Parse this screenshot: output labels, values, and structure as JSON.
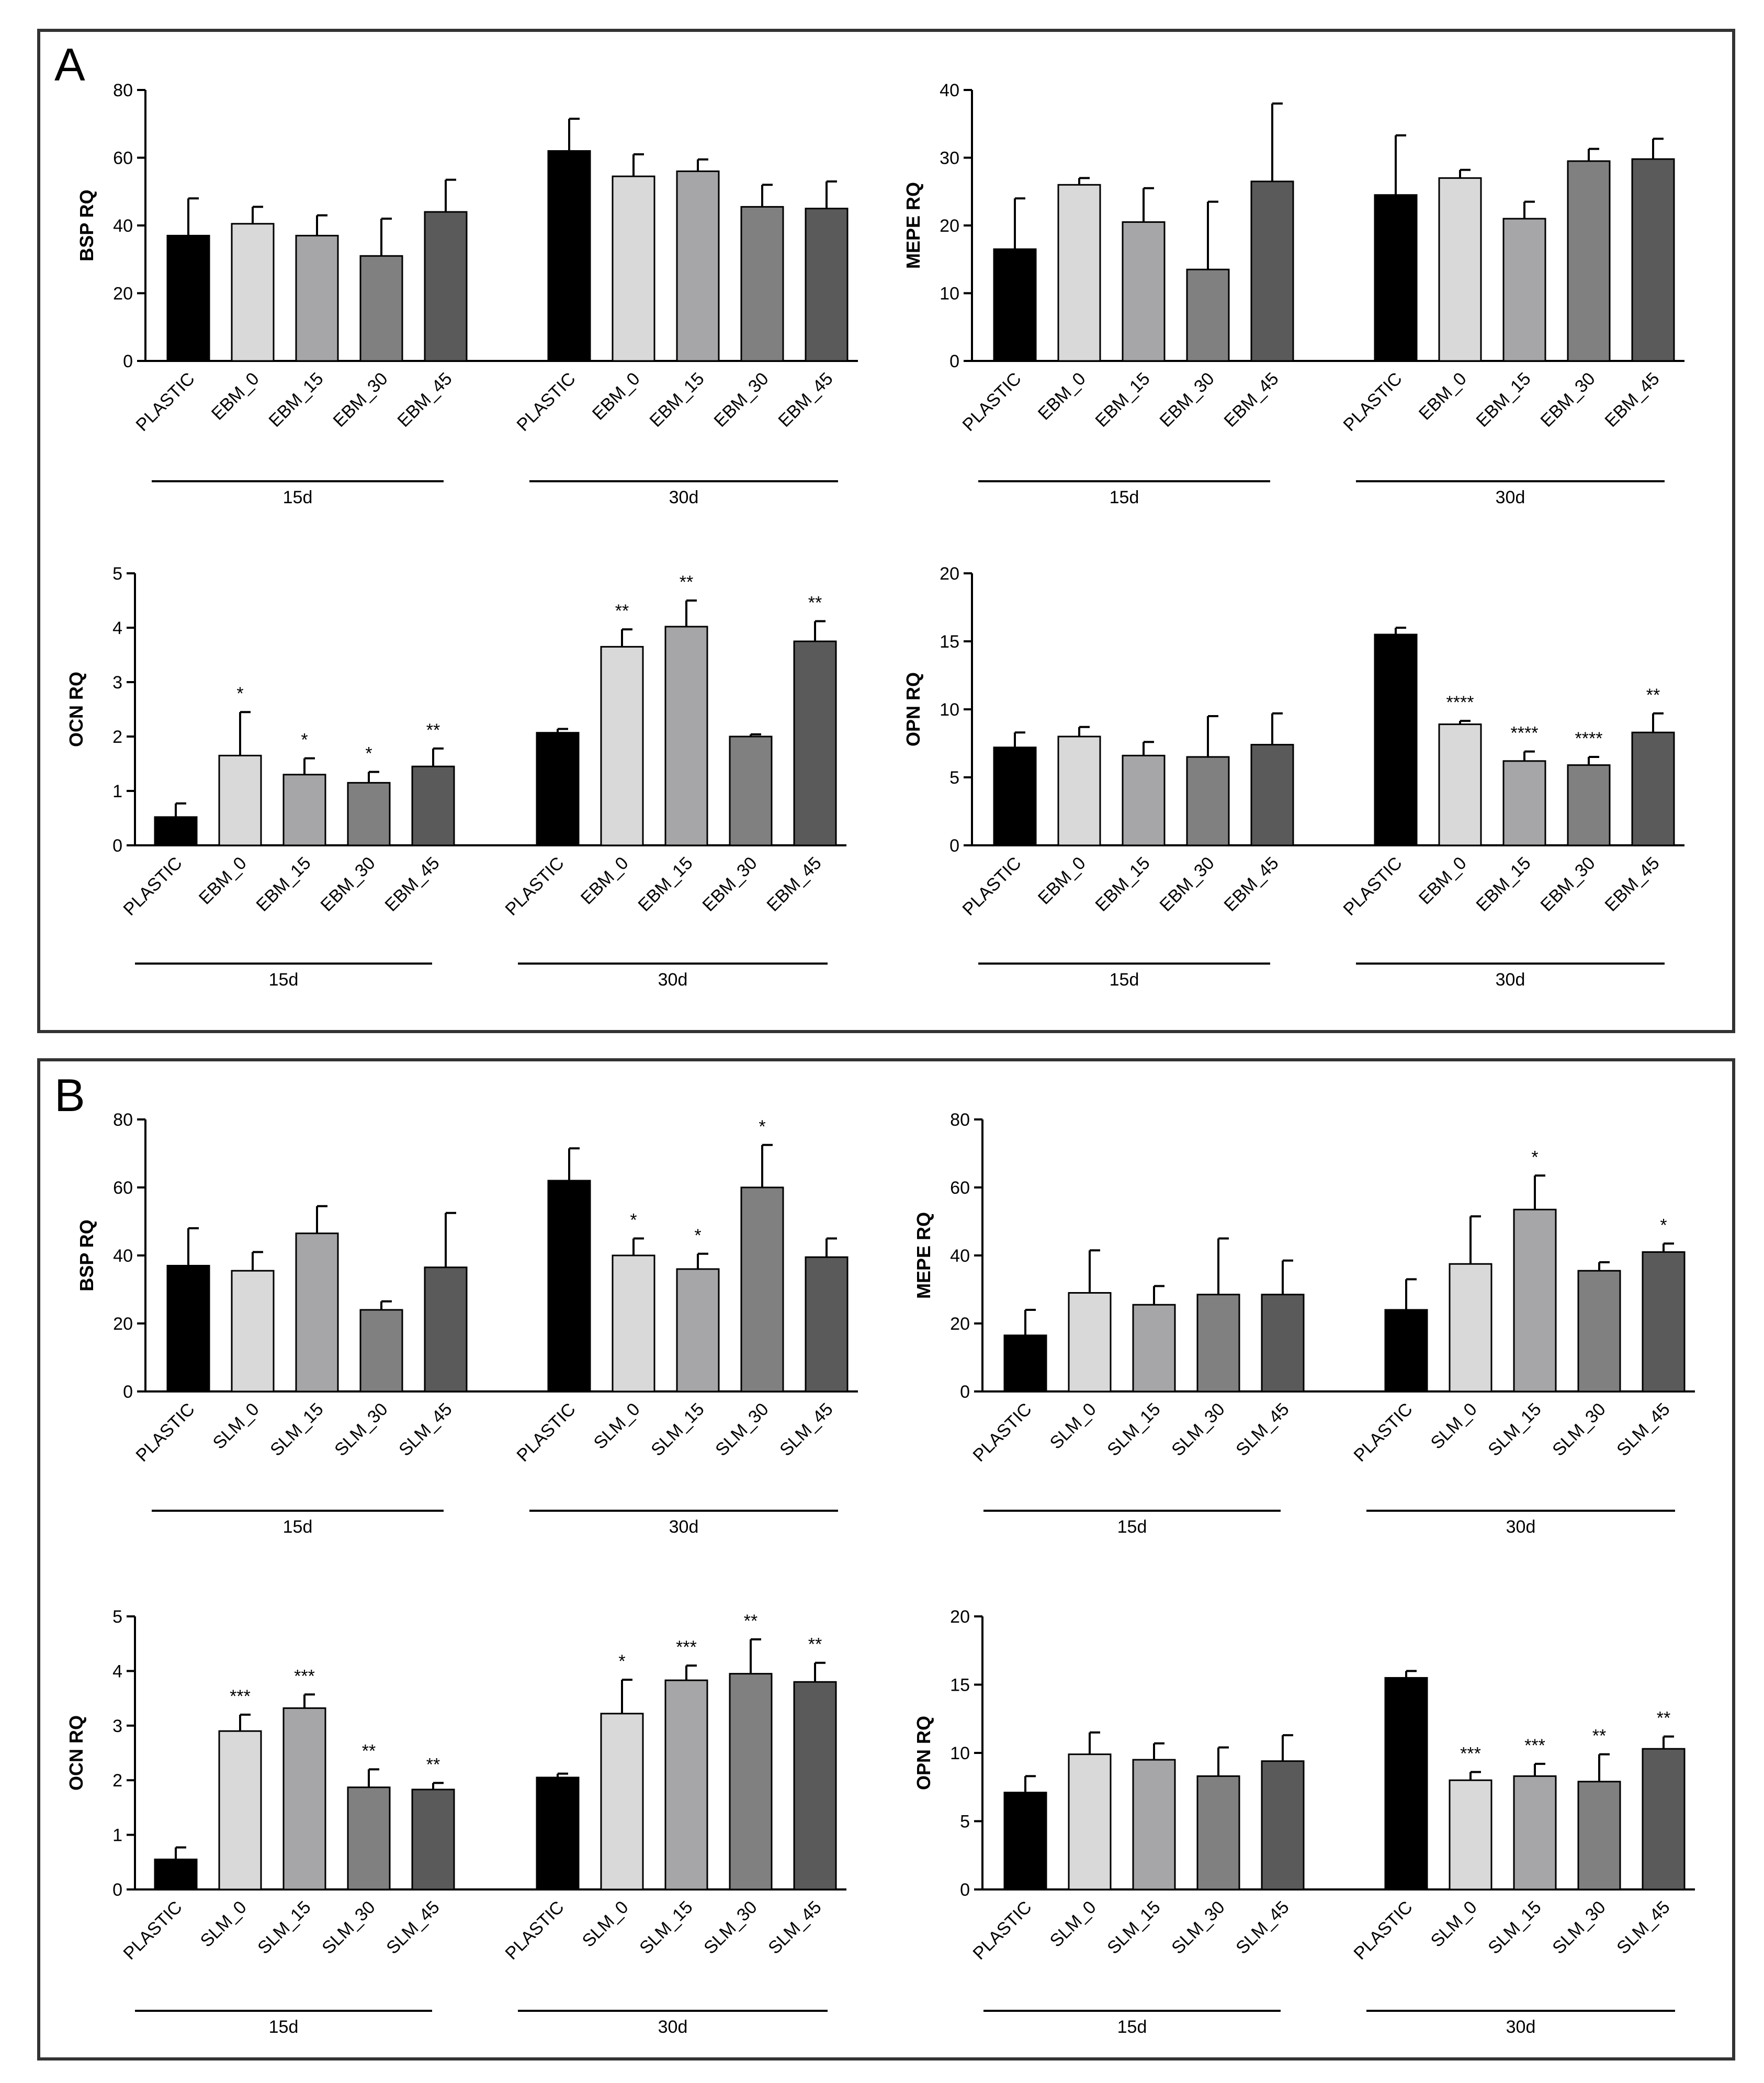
{
  "figure": {
    "panels": [
      {
        "label": "A",
        "material": "EBM"
      },
      {
        "label": "B",
        "material": "SLM"
      }
    ],
    "bar_colors": [
      "#000000",
      "#d9d9d9",
      "#a6a6a8",
      "#808080",
      "#5a5a5a"
    ]
  },
  "chart_data": [
    {
      "id": "A-BSP",
      "panel": "A",
      "type": "bar",
      "ylabel": "BSP RQ",
      "ylim": [
        0,
        80
      ],
      "yticks": [
        0,
        20,
        40,
        60,
        80
      ],
      "groups": [
        {
          "label": "15d",
          "categories": [
            "PLASTIC",
            "EBM_0",
            "EBM_15",
            "EBM_30",
            "EBM_45"
          ],
          "values": [
            37,
            40.5,
            37,
            31,
            44
          ],
          "errors": [
            11,
            5,
            6,
            11,
            9.5
          ],
          "significance": [
            "",
            "",
            "",
            "",
            ""
          ]
        },
        {
          "label": "30d",
          "categories": [
            "PLASTIC",
            "EBM_0",
            "EBM_15",
            "EBM_30",
            "EBM_45"
          ],
          "values": [
            62,
            54.5,
            56,
            45.5,
            45
          ],
          "errors": [
            9.5,
            6.5,
            3.5,
            6.5,
            8
          ],
          "significance": [
            "",
            "",
            "",
            "",
            ""
          ]
        }
      ]
    },
    {
      "id": "A-MEPE",
      "panel": "A",
      "type": "bar",
      "ylabel": "MEPE RQ",
      "ylim": [
        0,
        40
      ],
      "yticks": [
        0,
        10,
        20,
        30,
        40
      ],
      "groups": [
        {
          "label": "15d",
          "categories": [
            "PLASTIC",
            "EBM_0",
            "EBM_15",
            "EBM_30",
            "EBM_45"
          ],
          "values": [
            16.5,
            26,
            20.5,
            13.5,
            26.5
          ],
          "errors": [
            7.5,
            1,
            5,
            10,
            11.5
          ],
          "significance": [
            "",
            "",
            "",
            "",
            ""
          ]
        },
        {
          "label": "30d",
          "categories": [
            "PLASTIC",
            "EBM_0",
            "EBM_15",
            "EBM_30",
            "EBM_45"
          ],
          "values": [
            24.5,
            27,
            21,
            29.5,
            29.8
          ],
          "errors": [
            8.8,
            1.2,
            2.5,
            1.8,
            3
          ],
          "significance": [
            "",
            "",
            "",
            "",
            ""
          ]
        }
      ]
    },
    {
      "id": "A-OCN",
      "panel": "A",
      "type": "bar",
      "ylabel": "OCN RQ",
      "ylim": [
        0,
        5
      ],
      "yticks": [
        0,
        1,
        2,
        3,
        4,
        5
      ],
      "groups": [
        {
          "label": "15d",
          "categories": [
            "PLASTIC",
            "EBM_0",
            "EBM_15",
            "EBM_30",
            "EBM_45"
          ],
          "values": [
            0.52,
            1.65,
            1.3,
            1.15,
            1.45
          ],
          "errors": [
            0.25,
            0.8,
            0.3,
            0.2,
            0.33
          ],
          "significance": [
            "",
            "*",
            "*",
            "*",
            "**"
          ]
        },
        {
          "label": "30d",
          "categories": [
            "PLASTIC",
            "EBM_0",
            "EBM_15",
            "EBM_30",
            "EBM_45"
          ],
          "values": [
            2.07,
            3.65,
            4.02,
            2.0,
            3.75
          ],
          "errors": [
            0.07,
            0.32,
            0.48,
            0.04,
            0.37
          ],
          "significance": [
            "",
            "**",
            "**",
            "",
            "**"
          ]
        }
      ]
    },
    {
      "id": "A-OPN",
      "panel": "A",
      "type": "bar",
      "ylabel": "OPN RQ",
      "ylim": [
        0,
        20
      ],
      "yticks": [
        0,
        5,
        10,
        15,
        20
      ],
      "groups": [
        {
          "label": "15d",
          "categories": [
            "PLASTIC",
            "EBM_0",
            "EBM_15",
            "EBM_30",
            "EBM_45"
          ],
          "values": [
            7.2,
            8.0,
            6.6,
            6.5,
            7.4
          ],
          "errors": [
            1.1,
            0.7,
            1.0,
            3.0,
            2.3
          ],
          "significance": [
            "",
            "",
            "",
            "",
            ""
          ]
        },
        {
          "label": "30d",
          "categories": [
            "PLASTIC",
            "EBM_0",
            "EBM_15",
            "EBM_30",
            "EBM_45"
          ],
          "values": [
            15.5,
            8.9,
            6.2,
            5.9,
            8.3
          ],
          "errors": [
            0.5,
            0.25,
            0.7,
            0.6,
            1.4
          ],
          "significance": [
            "",
            "****",
            "****",
            "****",
            "**"
          ]
        }
      ]
    },
    {
      "id": "B-BSP",
      "panel": "B",
      "type": "bar",
      "ylabel": "BSP RQ",
      "ylim": [
        0,
        80
      ],
      "yticks": [
        0,
        20,
        40,
        60,
        80
      ],
      "groups": [
        {
          "label": "15d",
          "categories": [
            "PLASTIC",
            "SLM_0",
            "SLM_15",
            "SLM_30",
            "SLM_45"
          ],
          "values": [
            37,
            35.5,
            46.5,
            24,
            36.5
          ],
          "errors": [
            11,
            5.5,
            8,
            2.5,
            16
          ],
          "significance": [
            "",
            "",
            "",
            "",
            ""
          ]
        },
        {
          "label": "30d",
          "categories": [
            "PLASTIC",
            "SLM_0",
            "SLM_15",
            "SLM_30",
            "SLM_45"
          ],
          "values": [
            62,
            40,
            36,
            60,
            39.5
          ],
          "errors": [
            9.5,
            5,
            4.5,
            12.5,
            5.5
          ],
          "significance": [
            "",
            "*",
            "*",
            "*",
            ""
          ]
        }
      ]
    },
    {
      "id": "B-MEPE",
      "panel": "B",
      "type": "bar",
      "ylabel": "MEPE RQ",
      "ylim": [
        0,
        80
      ],
      "yticks": [
        0,
        20,
        40,
        60,
        80
      ],
      "groups": [
        {
          "label": "15d",
          "categories": [
            "PLASTIC",
            "SLM_0",
            "SLM_15",
            "SLM_30",
            "SLM_45"
          ],
          "values": [
            16.5,
            29,
            25.5,
            28.5,
            28.5
          ],
          "errors": [
            7.5,
            12.5,
            5.5,
            16.5,
            10
          ],
          "significance": [
            "",
            "",
            "",
            "",
            ""
          ]
        },
        {
          "label": "30d",
          "categories": [
            "PLASTIC",
            "SLM_0",
            "SLM_15",
            "SLM_30",
            "SLM_45"
          ],
          "values": [
            24,
            37.5,
            53.5,
            35.5,
            41
          ],
          "errors": [
            9,
            14,
            10,
            2.5,
            2.5
          ],
          "significance": [
            "",
            "",
            "*",
            "",
            "*"
          ]
        }
      ]
    },
    {
      "id": "B-OCN",
      "panel": "B",
      "type": "bar",
      "ylabel": "OCN RQ",
      "ylim": [
        0,
        5
      ],
      "yticks": [
        0,
        1,
        2,
        3,
        4,
        5
      ],
      "groups": [
        {
          "label": "15d",
          "categories": [
            "PLASTIC",
            "SLM_0",
            "SLM_15",
            "SLM_30",
            "SLM_45"
          ],
          "values": [
            0.55,
            2.9,
            3.32,
            1.87,
            1.83
          ],
          "errors": [
            0.22,
            0.3,
            0.25,
            0.33,
            0.12
          ],
          "significance": [
            "",
            "***",
            "***",
            "**",
            "**"
          ]
        },
        {
          "label": "30d",
          "categories": [
            "PLASTIC",
            "SLM_0",
            "SLM_15",
            "SLM_30",
            "SLM_45"
          ],
          "values": [
            2.05,
            3.22,
            3.83,
            3.95,
            3.8
          ],
          "errors": [
            0.07,
            0.62,
            0.27,
            0.63,
            0.35
          ],
          "significance": [
            "",
            "*",
            "***",
            "**",
            "**"
          ]
        }
      ]
    },
    {
      "id": "B-OPN",
      "panel": "B",
      "type": "bar",
      "ylabel": "OPN RQ",
      "ylim": [
        0,
        20
      ],
      "yticks": [
        0,
        5,
        10,
        15,
        20
      ],
      "groups": [
        {
          "label": "15d",
          "categories": [
            "PLASTIC",
            "SLM_0",
            "SLM_15",
            "SLM_30",
            "SLM_45"
          ],
          "values": [
            7.1,
            9.9,
            9.5,
            8.3,
            9.4
          ],
          "errors": [
            1.2,
            1.6,
            1.2,
            2.1,
            1.9
          ],
          "significance": [
            "",
            "",
            "",
            "",
            ""
          ]
        },
        {
          "label": "30d",
          "categories": [
            "PLASTIC",
            "SLM_0",
            "SLM_15",
            "SLM_30",
            "SLM_45"
          ],
          "values": [
            15.5,
            8.0,
            8.3,
            7.9,
            10.3
          ],
          "errors": [
            0.5,
            0.6,
            0.9,
            2.0,
            0.9
          ],
          "significance": [
            "",
            "***",
            "***",
            "**",
            "**"
          ]
        }
      ]
    }
  ]
}
